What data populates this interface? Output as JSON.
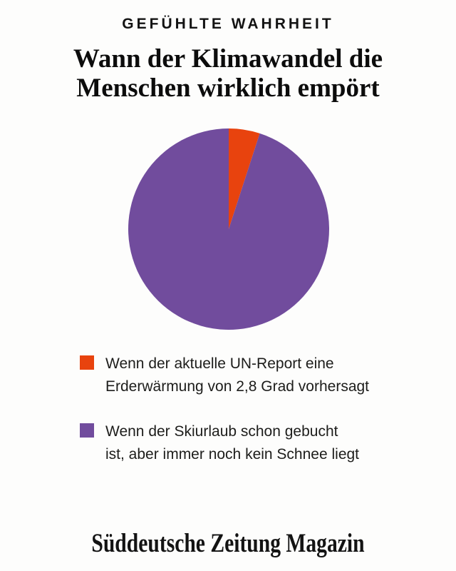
{
  "colors": {
    "background": "#FDFDFC",
    "kicker_text": "#131313",
    "title_text": "#0C0C0C",
    "legend_text": "#1D1D1B",
    "orange": "#E8430E",
    "purple": "#714C9D"
  },
  "header": {
    "kicker": "GEFÜHLTE WAHRHEIT",
    "title_line1": "Wann der Klimawandel die",
    "title_line2": "Menschen wirklich empört"
  },
  "chart_data": {
    "type": "pie",
    "title": "Wann der Klimawandel die Menschen wirklich empört",
    "kicker": "GEFÜHLTE WAHRHEIT",
    "start_angle_deg": 0,
    "direction": "clockwise",
    "legend_position": "bottom",
    "slices": [
      {
        "label": "Wenn der aktuelle UN-Report eine Erderwärmung von 2,8 Grad vorhersagt",
        "value": 5,
        "color": "#E8430E"
      },
      {
        "label": "Wenn der Skiurlaub schon gebucht ist, aber immer noch kein Schnee liegt",
        "value": 95,
        "color": "#714C9D"
      }
    ]
  },
  "legend": {
    "items": [
      {
        "lines": [
          "Wenn der aktuelle UN-Report eine",
          "Erderwärmung von 2,8 Grad vorhersagt"
        ]
      },
      {
        "lines": [
          "Wenn der Skiurlaub schon gebucht",
          "ist, aber immer noch kein Schnee liegt"
        ]
      }
    ]
  },
  "footer": {
    "brand": "Süddeutsche Zeitung Magazin"
  }
}
